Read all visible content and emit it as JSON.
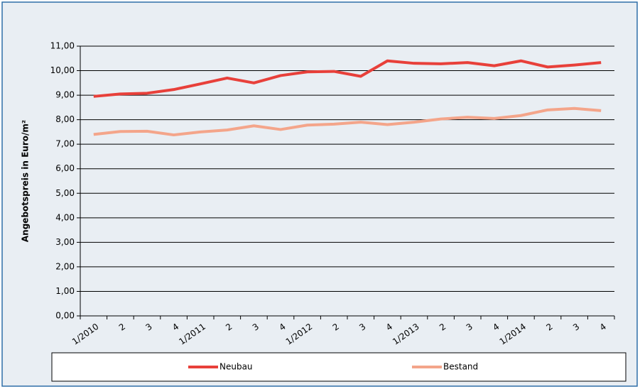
{
  "chart_data": {
    "type": "line",
    "y_label": "Angebotspreis in Euro/m²",
    "categories": [
      "1/2010",
      "2",
      "3",
      "4",
      "1/2011",
      "2",
      "3",
      "4",
      "1/2012",
      "2",
      "3",
      "4",
      "1/2013",
      "2",
      "3",
      "4",
      "1/2014",
      "2",
      "3",
      "4"
    ],
    "series": [
      {
        "name": "Neubau",
        "color": "#e8403a",
        "values": [
          8.95,
          9.05,
          9.08,
          9.23,
          9.46,
          9.7,
          9.5,
          9.8,
          9.95,
          9.97,
          9.77,
          10.4,
          10.3,
          10.28,
          10.33,
          10.2,
          10.4,
          10.15,
          10.23,
          10.33
        ]
      },
      {
        "name": "Bestand",
        "color": "#f4a58a",
        "values": [
          7.4,
          7.52,
          7.53,
          7.38,
          7.5,
          7.58,
          7.75,
          7.6,
          7.78,
          7.82,
          7.9,
          7.8,
          7.9,
          8.03,
          8.1,
          8.05,
          8.17,
          8.4,
          8.46,
          8.37
        ]
      }
    ],
    "ylim": [
      0,
      11
    ],
    "yticks": [
      {
        "value": 0,
        "label": "0,00"
      },
      {
        "value": 1,
        "label": "1,00"
      },
      {
        "value": 2,
        "label": "2,00"
      },
      {
        "value": 3,
        "label": "3,00"
      },
      {
        "value": 4,
        "label": "4,00"
      },
      {
        "value": 5,
        "label": "5,00"
      },
      {
        "value": 6,
        "label": "6,00"
      },
      {
        "value": 7,
        "label": "7,00"
      },
      {
        "value": 8,
        "label": "8,00"
      },
      {
        "value": 9,
        "label": "9,00"
      },
      {
        "value": 10,
        "label": "10,00"
      },
      {
        "value": 11,
        "label": "11,00"
      }
    ],
    "grid": true,
    "legend": "bottom"
  }
}
